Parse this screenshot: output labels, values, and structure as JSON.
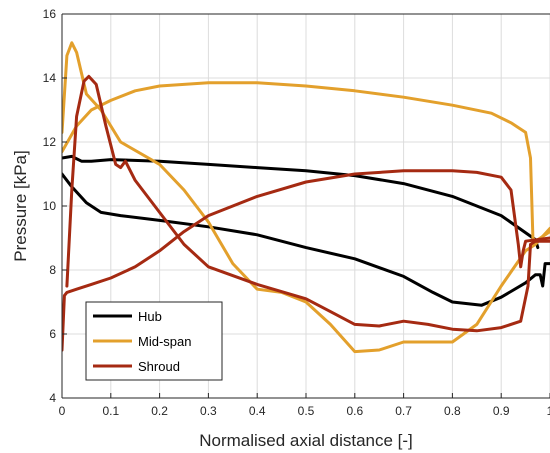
{
  "chart_data": {
    "type": "line",
    "xlabel": "Normalised axial distance [-]",
    "ylabel": "Pressure [kPa]",
    "xlim": [
      0,
      1
    ],
    "ylim": [
      4,
      16
    ],
    "xticks": [
      0,
      0.1,
      0.2,
      0.3,
      0.4,
      0.5,
      0.6,
      0.7,
      0.8,
      0.9,
      1
    ],
    "xtick_labels": [
      "0",
      "0.1",
      "0.2",
      "0.3",
      "0.4",
      "0.5",
      "0.6",
      "0.7",
      "0.8",
      "0.9",
      "1"
    ],
    "yticks": [
      4,
      6,
      8,
      10,
      12,
      14,
      16
    ],
    "ytick_labels": [
      "4",
      "6",
      "8",
      "10",
      "12",
      "14",
      "16"
    ],
    "grid": true,
    "legend_position": "bottom-left",
    "series": [
      {
        "name": "Hub",
        "color": "#000000",
        "segments": [
          [
            [
              0.0,
              11.5
            ],
            [
              0.02,
              11.55
            ],
            [
              0.04,
              11.4
            ],
            [
              0.06,
              11.4
            ],
            [
              0.1,
              11.45
            ],
            [
              0.2,
              11.4
            ],
            [
              0.3,
              11.3
            ],
            [
              0.4,
              11.2
            ],
            [
              0.5,
              11.1
            ],
            [
              0.6,
              10.95
            ],
            [
              0.7,
              10.7
            ],
            [
              0.8,
              10.3
            ],
            [
              0.9,
              9.7
            ],
            [
              0.97,
              8.95
            ],
            [
              0.975,
              8.7
            ]
          ],
          [
            [
              0.0,
              11.0
            ],
            [
              0.02,
              10.6
            ],
            [
              0.05,
              10.1
            ],
            [
              0.08,
              9.8
            ],
            [
              0.12,
              9.7
            ],
            [
              0.2,
              9.55
            ],
            [
              0.3,
              9.35
            ],
            [
              0.4,
              9.1
            ],
            [
              0.5,
              8.7
            ],
            [
              0.6,
              8.35
            ],
            [
              0.7,
              7.8
            ],
            [
              0.76,
              7.3
            ],
            [
              0.8,
              7.0
            ],
            [
              0.86,
              6.9
            ],
            [
              0.9,
              7.15
            ],
            [
              0.95,
              7.6
            ],
            [
              0.97,
              7.85
            ],
            [
              0.98,
              7.85
            ],
            [
              0.985,
              7.5
            ],
            [
              0.99,
              8.2
            ],
            [
              1.0,
              8.2
            ]
          ]
        ]
      },
      {
        "name": "Mid-span",
        "color": "#E3A02C",
        "segments": [
          [
            [
              0.0,
              12.3
            ],
            [
              0.01,
              14.7
            ],
            [
              0.02,
              15.1
            ],
            [
              0.03,
              14.8
            ],
            [
              0.05,
              13.5
            ],
            [
              0.08,
              13.0
            ],
            [
              0.12,
              12.0
            ],
            [
              0.2,
              11.3
            ],
            [
              0.25,
              10.5
            ],
            [
              0.3,
              9.5
            ],
            [
              0.35,
              8.2
            ],
            [
              0.4,
              7.4
            ],
            [
              0.45,
              7.3
            ],
            [
              0.5,
              7.0
            ],
            [
              0.55,
              6.3
            ],
            [
              0.6,
              5.45
            ],
            [
              0.65,
              5.5
            ],
            [
              0.7,
              5.75
            ],
            [
              0.75,
              5.75
            ],
            [
              0.8,
              5.75
            ],
            [
              0.85,
              6.3
            ],
            [
              0.9,
              7.5
            ],
            [
              0.95,
              8.6
            ],
            [
              0.97,
              8.8
            ],
            [
              1.0,
              9.3
            ]
          ],
          [
            [
              0.0,
              11.7
            ],
            [
              0.03,
              12.5
            ],
            [
              0.06,
              13.0
            ],
            [
              0.1,
              13.3
            ],
            [
              0.15,
              13.6
            ],
            [
              0.2,
              13.75
            ],
            [
              0.25,
              13.8
            ],
            [
              0.3,
              13.85
            ],
            [
              0.4,
              13.85
            ],
            [
              0.5,
              13.75
            ],
            [
              0.6,
              13.6
            ],
            [
              0.7,
              13.4
            ],
            [
              0.8,
              13.15
            ],
            [
              0.88,
              12.9
            ],
            [
              0.92,
              12.6
            ],
            [
              0.95,
              12.3
            ],
            [
              0.96,
              11.5
            ],
            [
              0.965,
              9.0
            ],
            [
              0.97,
              8.9
            ],
            [
              1.0,
              9.2
            ]
          ]
        ]
      },
      {
        "name": "Shroud",
        "color": "#A52A12",
        "segments": [
          [
            [
              0.0,
              5.5
            ],
            [
              0.005,
              7.2
            ],
            [
              0.01,
              7.3
            ],
            [
              0.03,
              7.4
            ],
            [
              0.06,
              7.55
            ],
            [
              0.1,
              7.75
            ],
            [
              0.15,
              8.1
            ],
            [
              0.2,
              8.6
            ],
            [
              0.25,
              9.2
            ],
            [
              0.3,
              9.7
            ],
            [
              0.4,
              10.3
            ],
            [
              0.5,
              10.75
            ],
            [
              0.6,
              11.0
            ],
            [
              0.7,
              11.1
            ],
            [
              0.8,
              11.1
            ],
            [
              0.85,
              11.05
            ],
            [
              0.9,
              10.9
            ],
            [
              0.92,
              10.5
            ],
            [
              0.935,
              8.8
            ],
            [
              0.94,
              8.1
            ],
            [
              0.945,
              8.6
            ],
            [
              0.95,
              8.9
            ],
            [
              1.0,
              9.0
            ]
          ],
          [
            [
              0.01,
              7.5
            ],
            [
              0.02,
              10.5
            ],
            [
              0.03,
              12.8
            ],
            [
              0.045,
              13.9
            ],
            [
              0.055,
              14.05
            ],
            [
              0.07,
              13.8
            ],
            [
              0.09,
              12.5
            ],
            [
              0.11,
              11.3
            ],
            [
              0.12,
              11.2
            ],
            [
              0.13,
              11.4
            ],
            [
              0.15,
              10.8
            ],
            [
              0.2,
              9.8
            ],
            [
              0.25,
              8.8
            ],
            [
              0.3,
              8.1
            ],
            [
              0.4,
              7.55
            ],
            [
              0.5,
              7.1
            ],
            [
              0.55,
              6.7
            ],
            [
              0.6,
              6.3
            ],
            [
              0.65,
              6.25
            ],
            [
              0.7,
              6.4
            ],
            [
              0.75,
              6.3
            ],
            [
              0.8,
              6.15
            ],
            [
              0.85,
              6.1
            ],
            [
              0.9,
              6.2
            ],
            [
              0.94,
              6.4
            ],
            [
              0.955,
              7.5
            ],
            [
              0.96,
              8.8
            ],
            [
              0.97,
              8.9
            ],
            [
              1.0,
              8.9
            ]
          ]
        ]
      }
    ]
  }
}
